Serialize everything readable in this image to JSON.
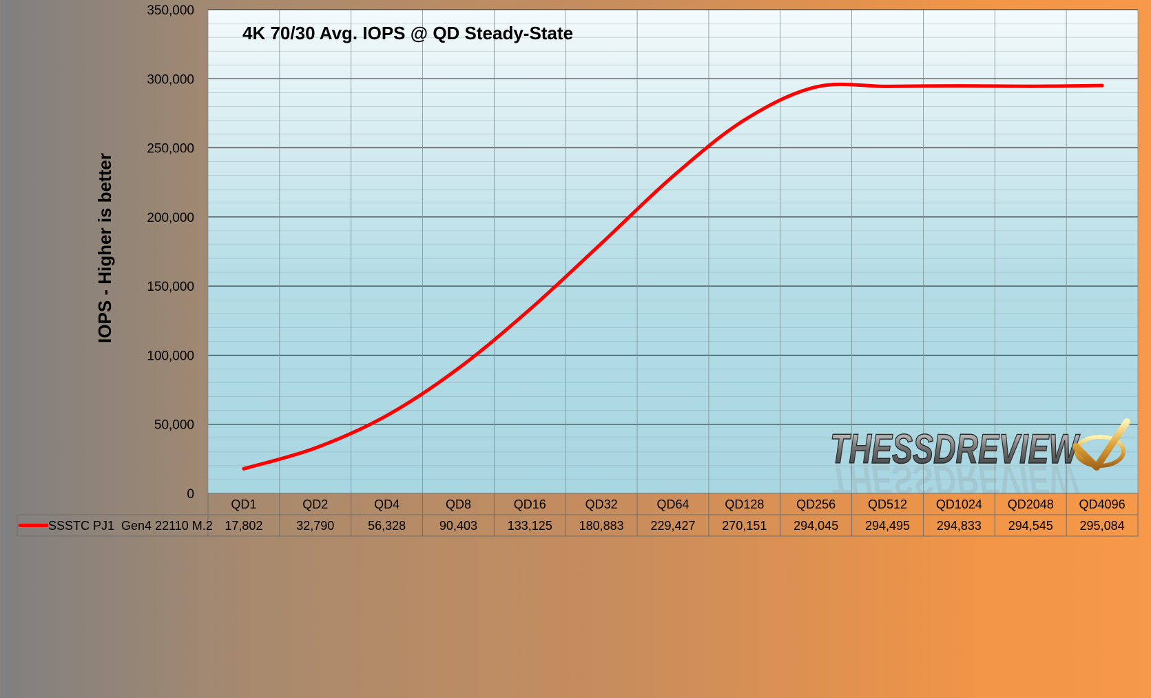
{
  "chart_data": {
    "type": "line",
    "title": "4K 70/30 Avg. IOPS @ QD Steady-State",
    "ylabel": "IOPS - Higher is better",
    "xlabel": "",
    "ylim": [
      0,
      350000
    ],
    "y_ticks": [
      0,
      50000,
      100000,
      150000,
      200000,
      250000,
      300000,
      350000
    ],
    "y_tick_labels": [
      "0",
      "50,000",
      "100,000",
      "150,000",
      "200,000",
      "250,000",
      "300,000",
      "350,000"
    ],
    "grid": true,
    "legend": "data-table-left",
    "categories": [
      "QD1",
      "QD2",
      "QD4",
      "QD8",
      "QD16",
      "QD32",
      "QD64",
      "QD128",
      "QD256",
      "QD512",
      "QD1024",
      "QD2048",
      "QD4096"
    ],
    "series": [
      {
        "name": "SSSTC PJ1  Gen4 22110 M.2",
        "color": "#ff0000",
        "values": [
          17802,
          32790,
          56328,
          90403,
          133125,
          180883,
          229427,
          270151,
          294045,
          294495,
          294833,
          294545,
          295084
        ],
        "value_labels": [
          "17,802",
          "32,790",
          "56,328",
          "90,403",
          "133,125",
          "180,883",
          "229,427",
          "270,151",
          "294,045",
          "294,495",
          "294,833",
          "294,545",
          "295,084"
        ]
      }
    ]
  },
  "watermark": {
    "text": "THESSDREVIEW",
    "icon": "checkmark-icon"
  }
}
